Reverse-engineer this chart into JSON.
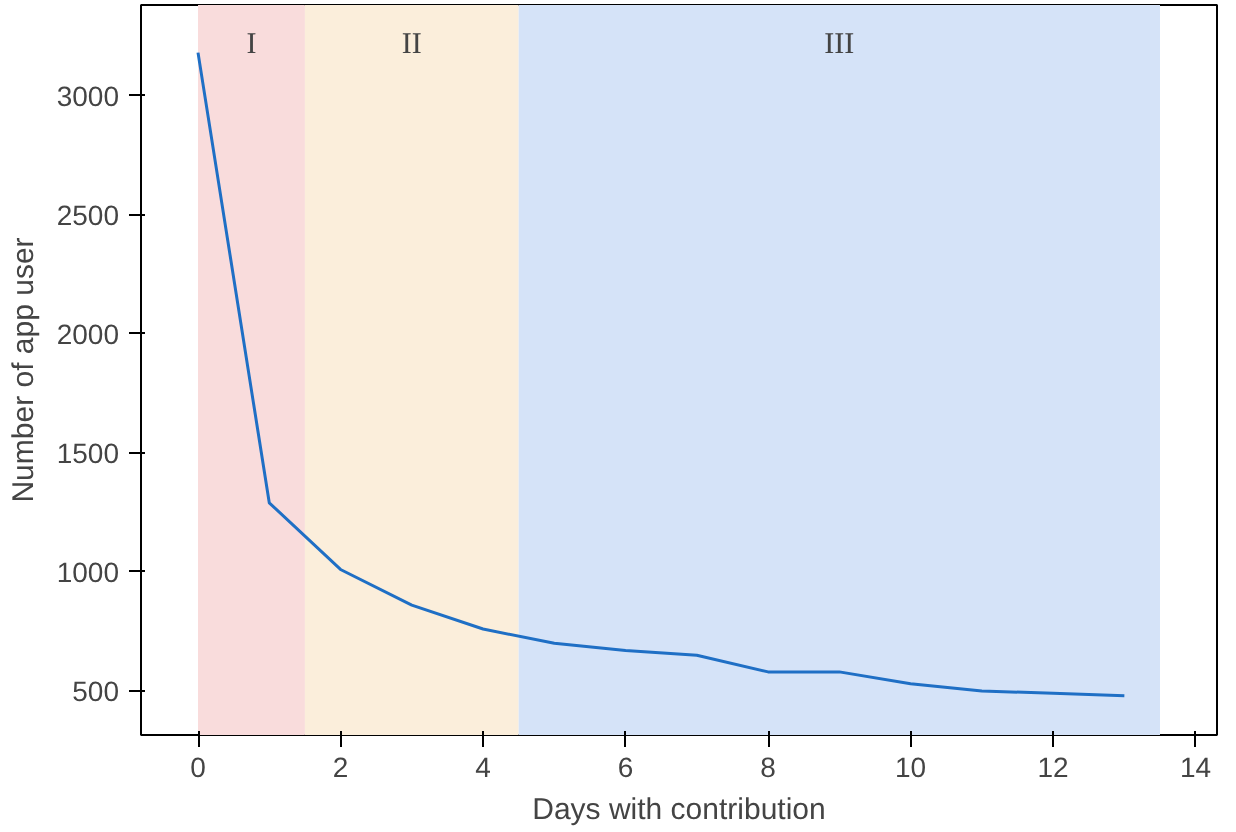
{
  "chart_data": {
    "type": "line",
    "xlabel": "Days with contribution",
    "ylabel": "Number of app user",
    "x": [
      0,
      1,
      2,
      3,
      4,
      5,
      6,
      7,
      8,
      9,
      10,
      11,
      12,
      13
    ],
    "series": [
      {
        "color": "#1f6fc5",
        "values": [
          3180,
          1290,
          1010,
          860,
          760,
          700,
          670,
          650,
          580,
          580,
          530,
          500,
          490,
          480
        ]
      }
    ],
    "xlim": [
      -0.8,
      14.3
    ],
    "ylim": [
      315,
      3380
    ],
    "xticks": [
      0,
      2,
      4,
      6,
      8,
      10,
      12,
      14
    ],
    "yticks": [
      500,
      1000,
      1500,
      2000,
      2500,
      3000
    ],
    "bands": [
      {
        "axis": "x",
        "from": 0,
        "to": 1.5,
        "label": "I",
        "color": "#f9dcdc"
      },
      {
        "axis": "x",
        "from": 1.5,
        "to": 4.5,
        "label": "II",
        "color": "#fbeedb"
      },
      {
        "axis": "x",
        "from": 4.5,
        "to": 13.5,
        "label": "III",
        "color": "#d5e3f8"
      }
    ],
    "grid": false,
    "marker": "none",
    "line_style": "solid"
  }
}
